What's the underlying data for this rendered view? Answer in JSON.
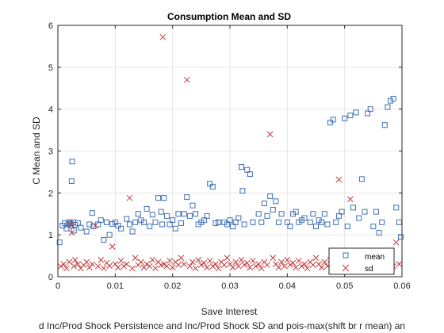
{
  "chart_data": {
    "type": "scatter",
    "title": "Consumption Mean and SD",
    "xlabel": "Save Interest",
    "ylabel": "C Mean and SD",
    "caption": "d Inc/Prod Shock Persistence and Inc/Prod Shock SD and pois-max(shift br r mean) an",
    "xlim": [
      0,
      0.06
    ],
    "ylim": [
      0,
      6
    ],
    "xticks": [
      0,
      0.01,
      0.02,
      0.03,
      0.04,
      0.05,
      0.06
    ],
    "xtick_labels": [
      "0",
      "0.01",
      "0.02",
      "0.03",
      "0.04",
      "0.05",
      "0.06"
    ],
    "yticks": [
      0,
      1,
      2,
      3,
      4,
      5,
      6
    ],
    "ytick_labels": [
      "0",
      "1",
      "2",
      "3",
      "4",
      "5",
      "6"
    ],
    "grid": true,
    "legend_position": "bottom-right",
    "colors": {
      "mean": "#3f6fb5",
      "sd": "#c23a3a",
      "axis": "#262626",
      "grid": "#e6e6e6"
    },
    "series": [
      {
        "name": "mean",
        "marker": "square",
        "points": [
          [
            0.0003,
            0.82
          ],
          [
            0.0008,
            1.22
          ],
          [
            0.0012,
            1.28
          ],
          [
            0.0015,
            1.15
          ],
          [
            0.0018,
            1.25
          ],
          [
            0.002,
            1.3
          ],
          [
            0.0022,
            1.27
          ],
          [
            0.0023,
            1.22
          ],
          [
            0.0024,
            2.28
          ],
          [
            0.0025,
            2.75
          ],
          [
            0.0027,
            1.3
          ],
          [
            0.0028,
            1.1
          ],
          [
            0.003,
            1.24
          ],
          [
            0.0035,
            1.28
          ],
          [
            0.004,
            1.17
          ],
          [
            0.005,
            1.08
          ],
          [
            0.0055,
            1.25
          ],
          [
            0.006,
            1.52
          ],
          [
            0.0062,
            1.2
          ],
          [
            0.007,
            1.25
          ],
          [
            0.0075,
            1.35
          ],
          [
            0.008,
            0.88
          ],
          [
            0.0085,
            1.3
          ],
          [
            0.009,
            1.0
          ],
          [
            0.0095,
            1.26
          ],
          [
            0.01,
            1.3
          ],
          [
            0.0105,
            1.22
          ],
          [
            0.011,
            1.15
          ],
          [
            0.012,
            1.38
          ],
          [
            0.0125,
            1.25
          ],
          [
            0.013,
            1.08
          ],
          [
            0.0135,
            1.3
          ],
          [
            0.014,
            1.5
          ],
          [
            0.0145,
            1.35
          ],
          [
            0.015,
            1.3
          ],
          [
            0.0155,
            1.62
          ],
          [
            0.016,
            1.2
          ],
          [
            0.0165,
            1.48
          ],
          [
            0.017,
            1.3
          ],
          [
            0.0175,
            1.88
          ],
          [
            0.018,
            1.55
          ],
          [
            0.0182,
            1.25
          ],
          [
            0.0185,
            1.88
          ],
          [
            0.019,
            1.45
          ],
          [
            0.0195,
            1.25
          ],
          [
            0.02,
            1.35
          ],
          [
            0.0205,
            1.15
          ],
          [
            0.021,
            1.5
          ],
          [
            0.0215,
            1.28
          ],
          [
            0.022,
            1.5
          ],
          [
            0.0225,
            1.9
          ],
          [
            0.023,
            1.45
          ],
          [
            0.0235,
            1.7
          ],
          [
            0.024,
            1.5
          ],
          [
            0.0245,
            1.25
          ],
          [
            0.025,
            1.3
          ],
          [
            0.0255,
            1.35
          ],
          [
            0.026,
            1.45
          ],
          [
            0.0265,
            2.22
          ],
          [
            0.027,
            2.15
          ],
          [
            0.0275,
            1.28
          ],
          [
            0.028,
            1.3
          ],
          [
            0.029,
            1.3
          ],
          [
            0.0295,
            1.25
          ],
          [
            0.03,
            1.35
          ],
          [
            0.0305,
            1.2
          ],
          [
            0.031,
            1.3
          ],
          [
            0.0315,
            1.4
          ],
          [
            0.032,
            2.62
          ],
          [
            0.0322,
            2.05
          ],
          [
            0.0325,
            1.25
          ],
          [
            0.033,
            2.55
          ],
          [
            0.0335,
            2.45
          ],
          [
            0.034,
            1.3
          ],
          [
            0.035,
            1.5
          ],
          [
            0.0355,
            1.3
          ],
          [
            0.036,
            1.75
          ],
          [
            0.0365,
            1.45
          ],
          [
            0.037,
            1.92
          ],
          [
            0.0375,
            1.6
          ],
          [
            0.038,
            1.8
          ],
          [
            0.0385,
            1.3
          ],
          [
            0.039,
            1.5
          ],
          [
            0.04,
            1.3
          ],
          [
            0.0405,
            1.2
          ],
          [
            0.041,
            1.5
          ],
          [
            0.0415,
            1.55
          ],
          [
            0.042,
            1.3
          ],
          [
            0.0425,
            1.35
          ],
          [
            0.043,
            1.4
          ],
          [
            0.044,
            1.3
          ],
          [
            0.0445,
            1.5
          ],
          [
            0.045,
            1.2
          ],
          [
            0.0455,
            1.35
          ],
          [
            0.046,
            1.3
          ],
          [
            0.0465,
            1.5
          ],
          [
            0.047,
            1.25
          ],
          [
            0.0475,
            3.68
          ],
          [
            0.048,
            3.75
          ],
          [
            0.0485,
            1.3
          ],
          [
            0.049,
            1.45
          ],
          [
            0.0495,
            1.55
          ],
          [
            0.05,
            3.78
          ],
          [
            0.0505,
            1.2
          ],
          [
            0.051,
            3.85
          ],
          [
            0.0515,
            1.65
          ],
          [
            0.052,
            3.92
          ],
          [
            0.0525,
            1.4
          ],
          [
            0.053,
            2.33
          ],
          [
            0.0535,
            1.55
          ],
          [
            0.054,
            3.9
          ],
          [
            0.0545,
            4.0
          ],
          [
            0.055,
            1.2
          ],
          [
            0.0555,
            1.55
          ],
          [
            0.056,
            1.05
          ],
          [
            0.0565,
            1.3
          ],
          [
            0.057,
            3.62
          ],
          [
            0.0575,
            4.05
          ],
          [
            0.058,
            4.2
          ],
          [
            0.0585,
            4.25
          ],
          [
            0.059,
            1.65
          ],
          [
            0.0595,
            1.3
          ],
          [
            0.0598,
            0.95
          ]
        ]
      },
      {
        "name": "sd",
        "marker": "x",
        "points": [
          [
            0.0005,
            0.25
          ],
          [
            0.001,
            0.3
          ],
          [
            0.0015,
            0.2
          ],
          [
            0.002,
            0.35
          ],
          [
            0.0022,
            1.25
          ],
          [
            0.0024,
            1.05
          ],
          [
            0.0028,
            0.25
          ],
          [
            0.003,
            0.4
          ],
          [
            0.0035,
            0.3
          ],
          [
            0.004,
            0.2
          ],
          [
            0.0045,
            0.28
          ],
          [
            0.005,
            0.35
          ],
          [
            0.0055,
            0.22
          ],
          [
            0.006,
            0.3
          ],
          [
            0.0065,
            1.22
          ],
          [
            0.007,
            0.25
          ],
          [
            0.0075,
            0.4
          ],
          [
            0.008,
            0.2
          ],
          [
            0.0085,
            0.33
          ],
          [
            0.009,
            0.26
          ],
          [
            0.0095,
            0.72
          ],
          [
            0.01,
            0.3
          ],
          [
            0.0105,
            0.22
          ],
          [
            0.011,
            0.38
          ],
          [
            0.0115,
            0.25
          ],
          [
            0.012,
            0.3
          ],
          [
            0.0125,
            1.88
          ],
          [
            0.013,
            0.2
          ],
          [
            0.0135,
            0.45
          ],
          [
            0.014,
            0.28
          ],
          [
            0.0145,
            0.35
          ],
          [
            0.015,
            0.22
          ],
          [
            0.0155,
            0.3
          ],
          [
            0.016,
            0.25
          ],
          [
            0.0165,
            0.4
          ],
          [
            0.017,
            0.2
          ],
          [
            0.0175,
            0.35
          ],
          [
            0.018,
            0.28
          ],
          [
            0.0183,
            5.72
          ],
          [
            0.0185,
            0.3
          ],
          [
            0.019,
            0.25
          ],
          [
            0.0195,
            0.38
          ],
          [
            0.02,
            0.22
          ],
          [
            0.0205,
            0.35
          ],
          [
            0.021,
            0.28
          ],
          [
            0.0215,
            0.45
          ],
          [
            0.022,
            0.3
          ],
          [
            0.0225,
            4.7
          ],
          [
            0.023,
            0.25
          ],
          [
            0.0235,
            0.35
          ],
          [
            0.024,
            0.2
          ],
          [
            0.0245,
            0.4
          ],
          [
            0.025,
            0.28
          ],
          [
            0.0255,
            0.33
          ],
          [
            0.026,
            0.22
          ],
          [
            0.0265,
            0.38
          ],
          [
            0.027,
            0.25
          ],
          [
            0.0275,
            0.3
          ],
          [
            0.028,
            0.2
          ],
          [
            0.0285,
            0.35
          ],
          [
            0.029,
            0.28
          ],
          [
            0.0295,
            0.45
          ],
          [
            0.03,
            0.3
          ],
          [
            0.0305,
            0.22
          ],
          [
            0.031,
            0.35
          ],
          [
            0.0315,
            0.25
          ],
          [
            0.032,
            0.4
          ],
          [
            0.0325,
            0.28
          ],
          [
            0.033,
            0.33
          ],
          [
            0.0335,
            0.22
          ],
          [
            0.034,
            0.38
          ],
          [
            0.0345,
            0.25
          ],
          [
            0.035,
            0.3
          ],
          [
            0.0355,
            0.2
          ],
          [
            0.036,
            0.35
          ],
          [
            0.0365,
            0.28
          ],
          [
            0.037,
            3.4
          ],
          [
            0.0375,
            0.45
          ],
          [
            0.038,
            0.3
          ],
          [
            0.0385,
            0.22
          ],
          [
            0.039,
            0.35
          ],
          [
            0.0395,
            0.25
          ],
          [
            0.04,
            0.4
          ],
          [
            0.0405,
            0.28
          ],
          [
            0.041,
            0.33
          ],
          [
            0.0415,
            0.22
          ],
          [
            0.042,
            0.38
          ],
          [
            0.0425,
            0.25
          ],
          [
            0.043,
            0.3
          ],
          [
            0.0435,
            0.2
          ],
          [
            0.044,
            0.35
          ],
          [
            0.0445,
            0.28
          ],
          [
            0.045,
            0.45
          ],
          [
            0.0455,
            0.3
          ],
          [
            0.046,
            0.22
          ],
          [
            0.0465,
            0.35
          ],
          [
            0.047,
            0.25
          ],
          [
            0.0475,
            0.4
          ],
          [
            0.048,
            0.28
          ],
          [
            0.0485,
            0.33
          ],
          [
            0.049,
            2.32
          ],
          [
            0.0495,
            0.22
          ],
          [
            0.05,
            0.38
          ],
          [
            0.0505,
            0.25
          ],
          [
            0.051,
            1.85
          ],
          [
            0.0515,
            0.3
          ],
          [
            0.052,
            0.2
          ],
          [
            0.0525,
            0.35
          ],
          [
            0.053,
            0.28
          ],
          [
            0.0535,
            0.45
          ],
          [
            0.054,
            0.3
          ],
          [
            0.0545,
            0.22
          ],
          [
            0.055,
            0.35
          ],
          [
            0.0555,
            0.25
          ],
          [
            0.056,
            0.4
          ],
          [
            0.0565,
            0.28
          ],
          [
            0.057,
            0.33
          ],
          [
            0.0575,
            0.6
          ],
          [
            0.058,
            0.38
          ],
          [
            0.0585,
            0.25
          ],
          [
            0.059,
            0.82
          ],
          [
            0.0595,
            0.3
          ]
        ]
      }
    ]
  }
}
